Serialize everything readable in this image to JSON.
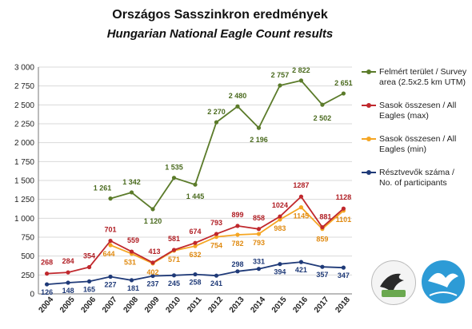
{
  "title": "Országos Sasszinkron eredmények",
  "subtitle": "Hungarian National Eagle Count results",
  "colors": {
    "survey": "#5b7b2a",
    "survey_label": "#4a6a1e",
    "max": "#c0282d",
    "max_label": "#b01e24",
    "min": "#f5a623",
    "min_label": "#e08a10",
    "participants": "#1f3a78",
    "participants_label": "#1f3a78",
    "grid": "#d9d9d9",
    "axis": "#777777"
  },
  "logos": {
    "mme": "MME",
    "count": "Sasszinkron"
  },
  "chart_data": {
    "type": "line",
    "x": [
      "2004",
      "2005",
      "2006",
      "2007",
      "2008",
      "2009",
      "2010",
      "2011",
      "2012",
      "2013",
      "2014",
      "2015",
      "2016",
      "2017",
      "2018"
    ],
    "y_ticks": [
      "0",
      "250",
      "500",
      "750",
      "1 000",
      "1 250",
      "1 500",
      "1 750",
      "2 000",
      "2 250",
      "2 500",
      "2 750",
      "3 000"
    ],
    "ylim": [
      0,
      3000
    ],
    "grid": true,
    "legend_position": "right",
    "series": [
      {
        "key": "survey",
        "name": "Felmért terület / Survey area (2.5x2.5 km UTM)",
        "values": [
          null,
          null,
          null,
          1261,
          1342,
          1120,
          1535,
          1445,
          2270,
          2480,
          2196,
          2757,
          2822,
          2502,
          2651
        ],
        "labels": [
          "",
          "",
          "",
          "1 261",
          "1 342",
          "1 120",
          "1 535",
          "1 445",
          "2 270",
          "2 480",
          "2 196",
          "2 757",
          "2 822",
          "2 502",
          "2 651"
        ]
      },
      {
        "key": "max",
        "name": "Sasok összesen / All Eagles (max)",
        "values": [
          268,
          284,
          354,
          701,
          559,
          413,
          581,
          674,
          793,
          899,
          858,
          1024,
          1287,
          881,
          1128
        ],
        "labels": [
          "268",
          "284",
          "354",
          "701",
          "559",
          "413",
          "581",
          "674",
          "793",
          "899",
          "858",
          "1024",
          "1287",
          "881",
          "1128"
        ]
      },
      {
        "key": "min",
        "name": "Sasok összesen / All Eagles (min)",
        "values": [
          null,
          null,
          null,
          644,
          531,
          402,
          571,
          632,
          754,
          782,
          793,
          983,
          1145,
          859,
          1101
        ],
        "labels": [
          "",
          "",
          "",
          "644",
          "531",
          "402",
          "571",
          "632",
          "754",
          "782",
          "793",
          "983",
          "1145",
          "859",
          "1101"
        ]
      },
      {
        "key": "participants",
        "name": "Résztvevők száma / No. of participants",
        "values": [
          126,
          148,
          165,
          227,
          181,
          237,
          245,
          258,
          241,
          298,
          331,
          394,
          421,
          357,
          347
        ],
        "labels": [
          "126",
          "148",
          "165",
          "227",
          "181",
          "237",
          "245",
          "258",
          "241",
          "298",
          "331",
          "394",
          "421",
          "357",
          "347"
        ]
      }
    ]
  }
}
